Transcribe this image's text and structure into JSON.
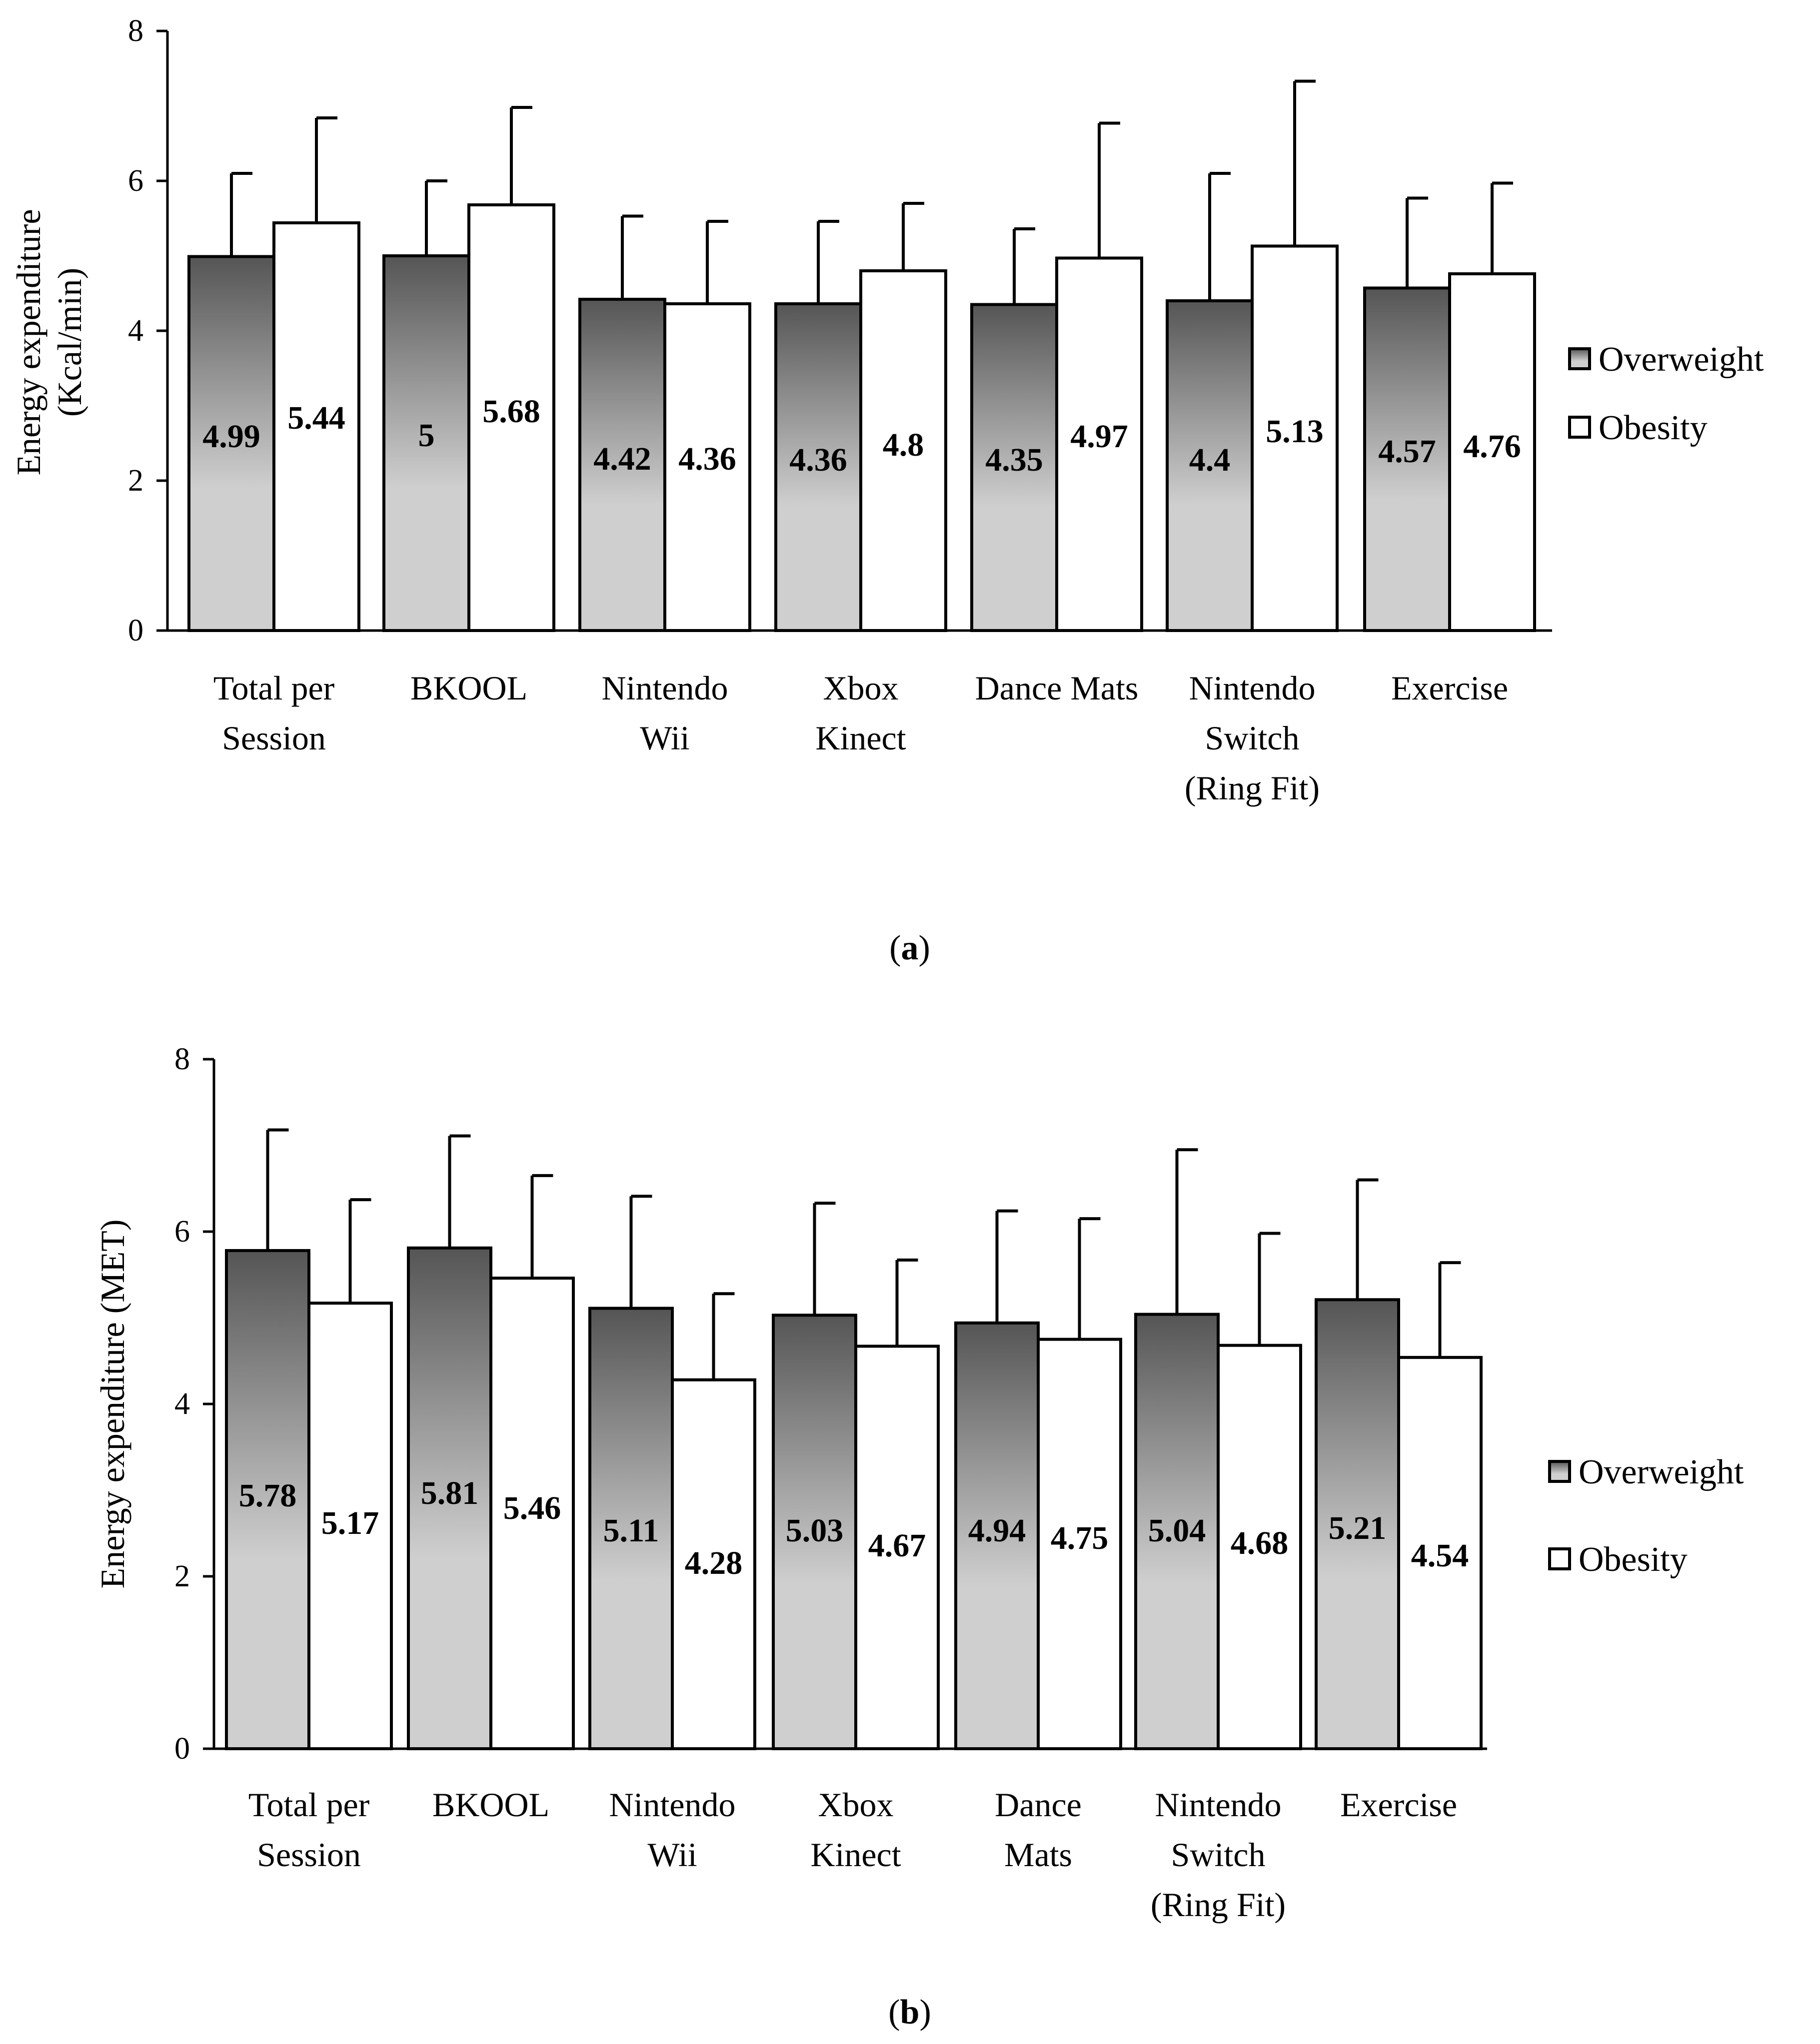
{
  "colors": {
    "overweight_top": "#555555",
    "overweight_bottom": "#cfcfcf",
    "obesity_fill": "#ffffff",
    "stroke": "#000000"
  },
  "chart_data": [
    {
      "type": "bar",
      "panel_label_open": "(",
      "panel_label_letter": "a",
      "panel_label_close": ")",
      "ylabel": "Energy expenditure",
      "ylabel_line2": "(Kcal/min)",
      "xlabel": "",
      "ylim": [
        0,
        8
      ],
      "yticks": [
        0,
        2,
        4,
        6,
        8
      ],
      "categories": [
        [
          "Total per",
          "Session"
        ],
        [
          "BKOOL"
        ],
        [
          "Nintendo",
          "Wii"
        ],
        [
          "Xbox",
          "Kinect"
        ],
        [
          "Dance Mats"
        ],
        [
          "Nintendo",
          "Switch",
          "(Ring Fit)"
        ],
        [
          "Exercise"
        ]
      ],
      "series": [
        {
          "name": "Overweight",
          "values": [
            4.99,
            5,
            4.42,
            4.36,
            4.35,
            4.4,
            4.57
          ],
          "labels": [
            "4.99",
            "5",
            "4.42",
            "4.36",
            "4.35",
            "4.4",
            "4.57"
          ],
          "error_top": [
            6.1,
            6.0,
            5.53,
            5.46,
            5.36,
            6.1,
            5.77
          ]
        },
        {
          "name": "Obesity",
          "values": [
            5.44,
            5.68,
            4.36,
            4.8,
            4.97,
            5.13,
            4.76
          ],
          "labels": [
            "5.44",
            "5.68",
            "4.36",
            "4.8",
            "4.97",
            "5.13",
            "4.76"
          ],
          "error_top": [
            6.84,
            6.98,
            5.46,
            5.7,
            6.77,
            7.33,
            5.97
          ]
        }
      ],
      "legend": [
        "Overweight",
        "Obesity"
      ],
      "legend_position": "right"
    },
    {
      "type": "bar",
      "panel_label_open": "(",
      "panel_label_letter": "b",
      "panel_label_close": ")",
      "ylabel": "Energy expenditure (MET)",
      "xlabel": "",
      "ylim": [
        0,
        8
      ],
      "yticks": [
        0,
        2,
        4,
        6,
        8
      ],
      "categories": [
        [
          "Total per",
          "Session"
        ],
        [
          "BKOOL"
        ],
        [
          "Nintendo",
          "Wii"
        ],
        [
          "Xbox",
          "Kinect"
        ],
        [
          "Dance",
          "Mats"
        ],
        [
          "Nintendo",
          "Switch",
          "(Ring Fit)"
        ],
        [
          "Exercise"
        ]
      ],
      "series": [
        {
          "name": "Overweight",
          "values": [
            5.78,
            5.81,
            5.11,
            5.03,
            4.94,
            5.04,
            5.21
          ],
          "labels": [
            "5.78",
            "5.81",
            "5.11",
            "5.03",
            "4.94",
            "5.04",
            "5.21"
          ],
          "error_top": [
            7.18,
            7.11,
            6.41,
            6.33,
            6.24,
            6.95,
            6.6
          ]
        },
        {
          "name": "Obesity",
          "values": [
            5.17,
            5.46,
            4.28,
            4.67,
            4.75,
            4.68,
            4.54
          ],
          "labels": [
            "5.17",
            "5.46",
            "4.28",
            "4.67",
            "4.75",
            "4.68",
            "4.54"
          ],
          "error_top": [
            6.37,
            6.65,
            5.28,
            5.67,
            6.15,
            5.98,
            5.64
          ]
        }
      ],
      "legend": [
        "Overweight",
        "Obesity"
      ],
      "legend_position": "right"
    }
  ]
}
